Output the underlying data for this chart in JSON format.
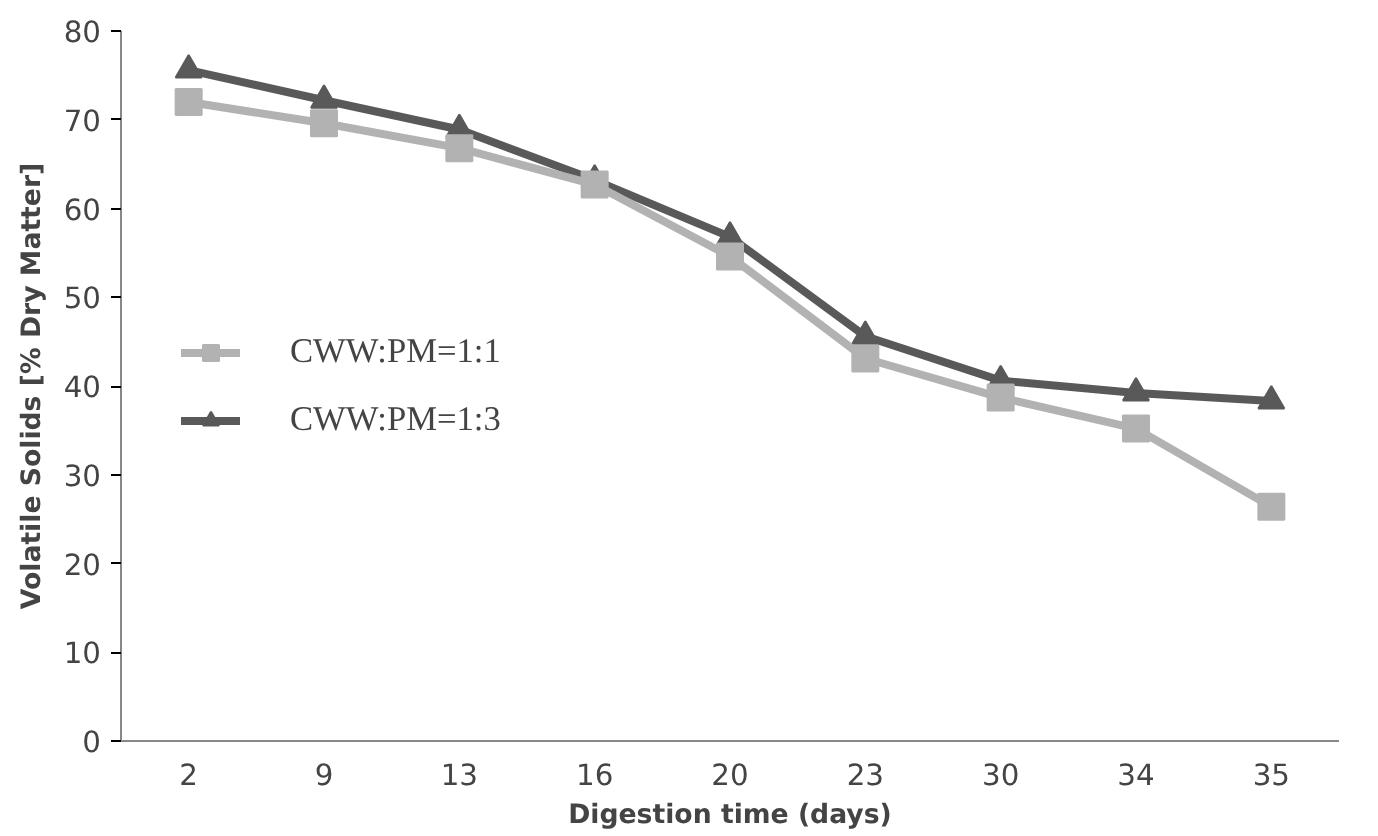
{
  "chart_data": {
    "type": "line",
    "xlabel": "Digestion time (days)",
    "ylabel": "Volatile Solids [% Dry Matter]",
    "categories": [
      "2",
      "9",
      "13",
      "16",
      "20",
      "23",
      "30",
      "34",
      "35"
    ],
    "ylim": [
      0,
      80
    ],
    "yticks": [
      0,
      10,
      20,
      30,
      40,
      50,
      60,
      70,
      80
    ],
    "grid": false,
    "legend": "left",
    "series": [
      {
        "name": "CWW:PM=1:1",
        "color": "#b2b2b2",
        "marker": "square",
        "values": [
          72,
          69.6,
          66.8,
          62.7,
          54.6,
          43.1,
          38.7,
          35.2,
          26.4
        ]
      },
      {
        "name": "CWW:PM=1:3",
        "color": "#595959",
        "marker": "triangle",
        "values": [
          75.6,
          72.2,
          68.9,
          63.2,
          56.8,
          45.6,
          40.6,
          39.2,
          38.3
        ]
      }
    ]
  }
}
